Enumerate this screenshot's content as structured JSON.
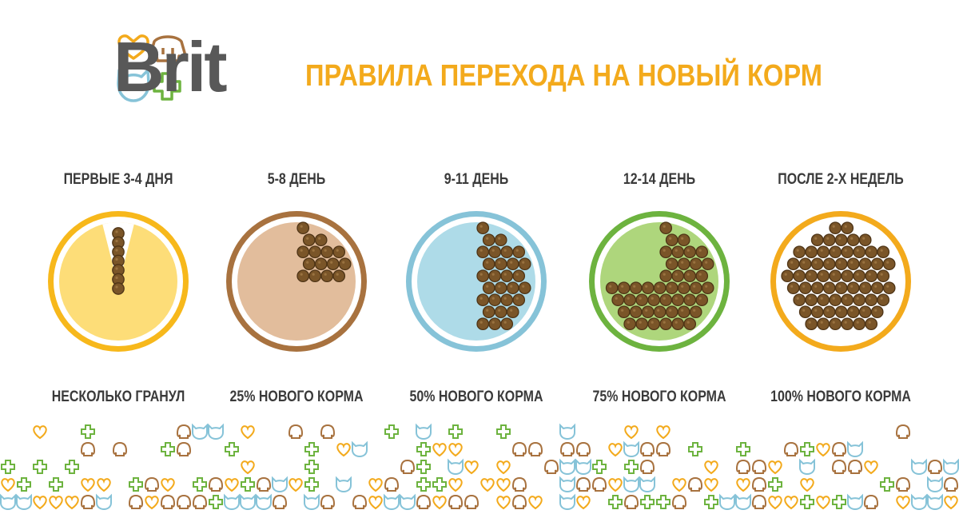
{
  "brand": {
    "name": "Brit"
  },
  "title": "ПРАВИЛА ПЕРЕХОДА НА НОВЫЙ КОРМ",
  "stages": [
    {
      "label": "ПЕРВЫЕ 3-4 ДНЯ",
      "caption": "НЕСКОЛЬКО ГРАНУЛ",
      "new_food_fraction": 0.03,
      "ring_color": "#f7b81b",
      "fill_color": "#fddd78"
    },
    {
      "label": "5-8 ДЕНЬ",
      "caption": "25% НОВОГО КОРМА",
      "new_food_fraction": 0.25,
      "ring_color": "#a8723f",
      "fill_color": "#e2bd9c"
    },
    {
      "label": "9-11 ДЕНЬ",
      "caption": "50% НОВОГО КОРМА",
      "new_food_fraction": 0.5,
      "ring_color": "#86c3d8",
      "fill_color": "#aedbe8"
    },
    {
      "label": "12-14 ДЕНЬ",
      "caption": "75% НОВОГО КОРМА",
      "new_food_fraction": 0.75,
      "ring_color": "#6db33f",
      "fill_color": "#aed67c"
    },
    {
      "label": "ПОСЛЕ 2-Х НЕДЕЛЬ",
      "caption": "100% НОВОГО КОРМА",
      "new_food_fraction": 1.0,
      "ring_color": "#f3aa1c",
      "fill_color": "#ffffff"
    }
  ],
  "colors": {
    "title": "#f3aa1c",
    "brand_text": "#585858",
    "kibble": "#7a5528",
    "kibble_dark": "#4e3416",
    "icon_heart": "#f3aa1c",
    "icon_dog": "#a8723f",
    "icon_cat": "#86c3d8",
    "icon_cross": "#6db33f"
  },
  "icons": [
    "heart-icon",
    "dog-icon",
    "cat-icon",
    "cross-icon"
  ]
}
